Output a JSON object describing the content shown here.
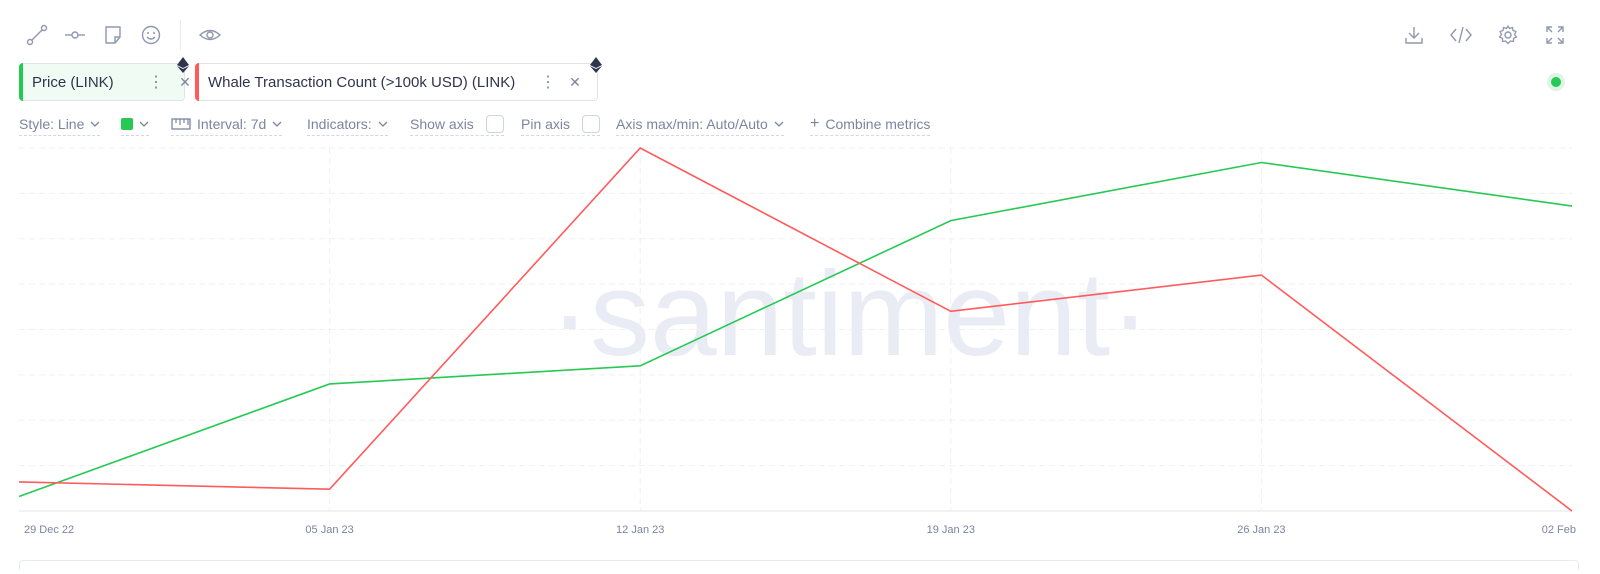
{
  "toolbar": {
    "left_icons": [
      "line-tool-icon",
      "horizontal-ray-icon",
      "note-icon",
      "emoji-icon",
      "visibility-eye-icon"
    ],
    "right_icons": [
      "download-icon",
      "embed-code-icon",
      "settings-gear-icon",
      "fullscreen-icon"
    ]
  },
  "metrics": [
    {
      "label": "Price (LINK)",
      "color": "#26c953",
      "icon": "ethereum-icon"
    },
    {
      "label": "Whale Transaction Count (>100k USD) (LINK)",
      "color": "#ff5b5b",
      "icon": "ethereum-icon"
    }
  ],
  "settings": {
    "style_label": "Style: Line",
    "color": "#26c953",
    "interval_label": "Interval: 7d",
    "indicators_label": "Indicators:",
    "show_axis_label": "Show axis",
    "pin_axis_label": "Pin axis",
    "axis_maxmin_label": "Axis max/min: Auto/Auto",
    "combine_label": "Combine metrics"
  },
  "watermark": "·santiment·",
  "chart_data": {
    "type": "line",
    "x": [
      "29 Dec 22",
      "05 Jan 23",
      "12 Jan 23",
      "19 Jan 23",
      "26 Jan 23",
      "02 Feb"
    ],
    "x_tick_labels": [
      "29 Dec 22",
      "05 Jan 23",
      "12 Jan 23",
      "19 Jan 23",
      "26 Jan 23",
      "02 Feb"
    ],
    "series": [
      {
        "name": "Price (LINK)",
        "color": "#26c953",
        "values": [
          0.04,
          0.35,
          0.4,
          0.8,
          0.96,
          0.84
        ],
        "scale": "normalized, axis hidden"
      },
      {
        "name": "Whale Transaction Count (>100k USD) (LINK)",
        "color": "#ff5b5b",
        "values": [
          0.08,
          0.06,
          1.0,
          0.55,
          0.65,
          0.0
        ],
        "scale": "normalized, axis hidden"
      }
    ],
    "ylim": [
      0,
      1
    ],
    "y_axis_visible": false,
    "grid": true,
    "legend": "top-left chips"
  }
}
